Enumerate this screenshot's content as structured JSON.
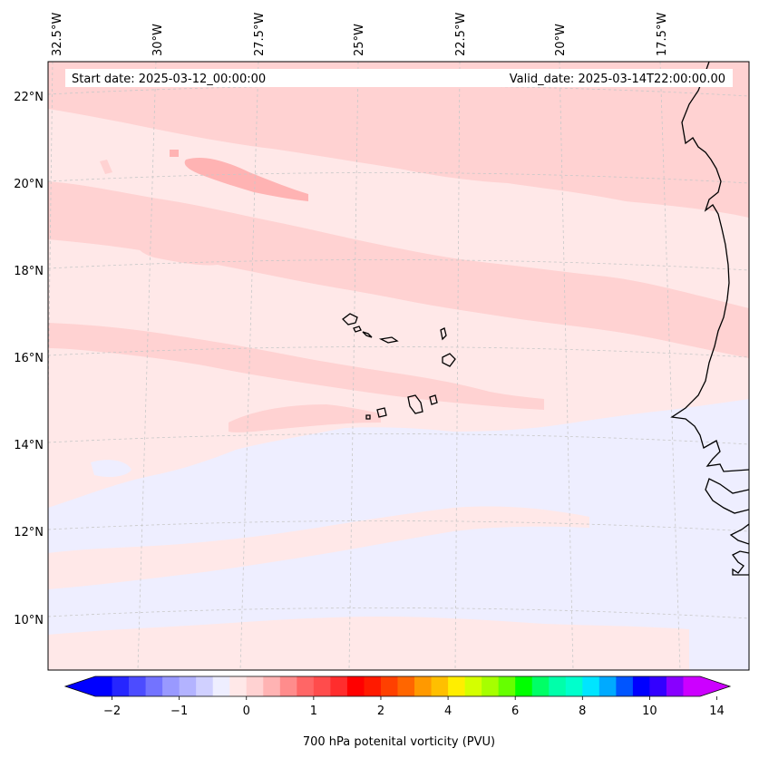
{
  "map": {
    "start_date_label": "Start date: 2025-03-12_00:00:00",
    "valid_date_label": "Valid_date: 2025-03-14T22:00:00.00",
    "longitude_labels": [
      "32.5°W",
      "30°W",
      "27.5°W",
      "25°W",
      "22.5°W",
      "20°W",
      "17.5°W"
    ],
    "latitude_labels": [
      "22°N",
      "20°N",
      "18°N",
      "16°N",
      "14°N",
      "12°N",
      "10°N"
    ],
    "extent": {
      "lon_min": -33.0,
      "lon_max": -15.5,
      "lat_min": 8.8,
      "lat_max": 22.8
    }
  },
  "colorbar": {
    "label": "700 hPa potenital vorticity (PVU)",
    "tick_labels": [
      "−2",
      "−1",
      "0",
      "1",
      "2",
      "4",
      "6",
      "8",
      "10",
      "14"
    ],
    "colors": [
      "#0000ff",
      "#2626ff",
      "#4c4cff",
      "#7373ff",
      "#9999ff",
      "#b3b3ff",
      "#d0d0ff",
      "#eeeeff",
      "#ffe8e8",
      "#ffd2d2",
      "#ffb3b3",
      "#ff8c8c",
      "#ff6666",
      "#ff4c4c",
      "#ff2d2d",
      "#ff0000",
      "#ff1a00",
      "#ff4000",
      "#ff6600",
      "#ff9900",
      "#ffbf00",
      "#ffee00",
      "#d4ff00",
      "#a6ff00",
      "#66ff00",
      "#00ff00",
      "#00ff66",
      "#00ffaa",
      "#00ffcc",
      "#00e5ff",
      "#00aaff",
      "#0055ff",
      "#0000ff",
      "#3300ff",
      "#8800ff",
      "#cc00ff"
    ],
    "under_color": "#0000ff",
    "over_color": "#cc00ff"
  }
}
